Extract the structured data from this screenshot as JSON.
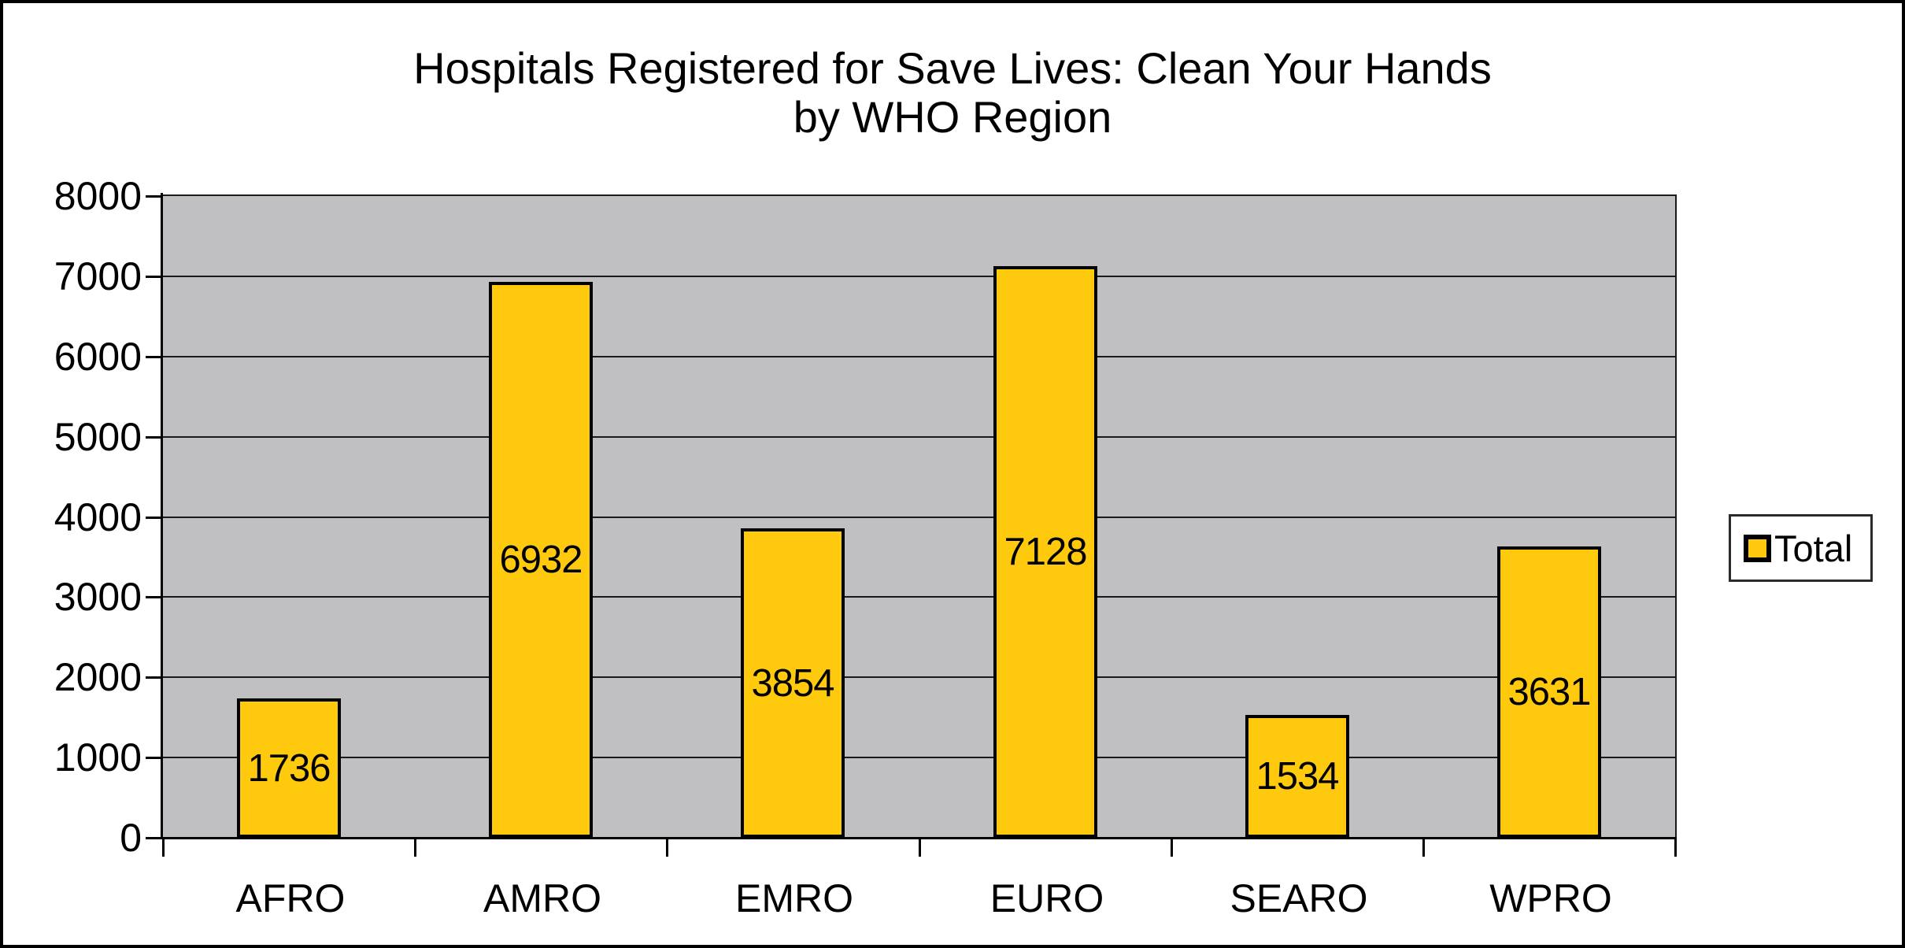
{
  "chart_data": {
    "type": "bar",
    "title": "Hospitals Registered for Save Lives: Clean Your Hands",
    "subtitle": "by WHO Region",
    "categories": [
      "AFRO",
      "AMRO",
      "EMRO",
      "EURO",
      "SEARO",
      "WPRO"
    ],
    "series": [
      {
        "name": "Total",
        "values": [
          1736,
          6932,
          3854,
          7128,
          1534,
          3631
        ]
      }
    ],
    "bar_value_labels": [
      "1736",
      "6932",
      "3854",
      "7128",
      "1534",
      "3631"
    ],
    "ylim": [
      0,
      8000
    ],
    "ytick_step": 1000,
    "ytick_labels": [
      "0",
      "1000",
      "2000",
      "3000",
      "4000",
      "5000",
      "6000",
      "7000",
      "8000"
    ],
    "grid": "horizontal-major",
    "legend": {
      "position": "right",
      "entries": [
        {
          "label": "Total",
          "swatch_color": "#ffc90e"
        }
      ]
    },
    "colors": {
      "bar_fill": "#ffc90e",
      "bar_border": "#000000",
      "plot_background": "#c0c0c3",
      "gridline": "#1a1a1a",
      "axis_line": "#000000",
      "chart_border": "#000000",
      "chart_background": "#ffffff",
      "text": "#000000"
    }
  }
}
